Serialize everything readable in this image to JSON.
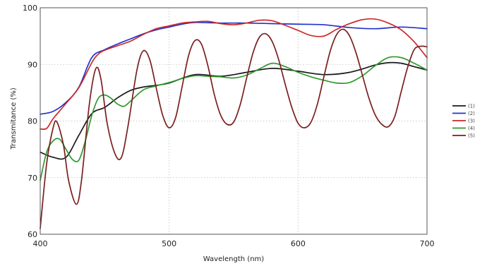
{
  "chart_data": {
    "type": "line",
    "title": "",
    "xlabel": "Wavelength (nm)",
    "ylabel": "Transmitance (%)",
    "xlim": [
      400,
      700
    ],
    "ylim": [
      60,
      100
    ],
    "xticks": [
      400,
      500,
      600,
      700
    ],
    "yticks": [
      60,
      70,
      80,
      90,
      100
    ],
    "grid": true,
    "legend_position": "right",
    "series": [
      {
        "name": "(1)",
        "color": "#1a1a1a",
        "x": [
          400,
          410,
          420,
          430,
          440,
          450,
          460,
          470,
          480,
          490,
          500,
          520,
          540,
          560,
          580,
          600,
          620,
          640,
          660,
          670,
          680,
          690,
          700
        ],
        "y": [
          74.5,
          73.6,
          73.6,
          77.5,
          81.3,
          82.4,
          84.1,
          85.4,
          86.0,
          86.3,
          86.7,
          88.2,
          87.9,
          88.6,
          89.3,
          88.8,
          88.2,
          88.6,
          89.9,
          90.3,
          90.2,
          89.6,
          89.0
        ]
      },
      {
        "name": "(2)",
        "color": "#2233cc",
        "x": [
          400,
          410,
          420,
          430,
          440,
          450,
          460,
          470,
          480,
          490,
          500,
          510,
          520,
          540,
          560,
          580,
          600,
          620,
          640,
          660,
          680,
          700
        ],
        "y": [
          81.2,
          81.7,
          83.3,
          86.0,
          91.2,
          92.6,
          93.6,
          94.5,
          95.4,
          96.1,
          96.6,
          97.1,
          97.4,
          97.3,
          97.3,
          97.2,
          97.1,
          97.0,
          96.5,
          96.3,
          96.6,
          96.3
        ]
      },
      {
        "name": "(3)",
        "color": "#cc2a2a",
        "x": [
          400,
          405,
          410,
          420,
          430,
          440,
          445,
          450,
          460,
          470,
          480,
          490,
          500,
          510,
          520,
          530,
          540,
          550,
          560,
          570,
          580,
          590,
          600,
          610,
          620,
          630,
          640,
          650,
          660,
          670,
          680,
          690,
          700
        ],
        "y": [
          78.6,
          78.7,
          80.4,
          83.1,
          85.9,
          90.3,
          91.8,
          92.5,
          93.3,
          94.1,
          95.3,
          96.3,
          96.8,
          97.3,
          97.5,
          97.6,
          97.2,
          97.0,
          97.3,
          97.8,
          97.7,
          96.9,
          96.0,
          95.1,
          95.0,
          96.2,
          97.2,
          97.9,
          98.0,
          97.3,
          96.1,
          94.0,
          91.2
        ]
      },
      {
        "name": "(4)",
        "color": "#2e9a2e",
        "x": [
          400,
          405,
          410,
          415,
          420,
          425,
          430,
          435,
          440,
          445,
          450,
          455,
          460,
          465,
          470,
          480,
          490,
          500,
          510,
          520,
          530,
          540,
          550,
          560,
          570,
          580,
          590,
          600,
          610,
          620,
          630,
          640,
          650,
          660,
          670,
          680,
          690,
          700
        ],
        "y": [
          69.5,
          74.5,
          76.5,
          76.8,
          75.0,
          73.2,
          73.1,
          76.5,
          81.0,
          84.0,
          84.6,
          84.0,
          83.0,
          82.6,
          83.5,
          85.5,
          86.2,
          86.8,
          87.5,
          88.0,
          87.9,
          87.8,
          87.6,
          88.1,
          89.2,
          90.2,
          89.6,
          88.6,
          87.8,
          87.2,
          86.7,
          86.8,
          88.0,
          89.8,
          91.2,
          91.2,
          90.2,
          89.0
        ]
      },
      {
        "name": "(5)",
        "color": "#7a1f1f",
        "x": [
          400,
          405,
          410,
          413,
          418,
          422,
          428,
          432,
          438,
          443,
          447,
          452,
          458,
          463,
          468,
          475,
          480,
          485,
          490,
          495,
          500,
          505,
          510,
          515,
          520,
          525,
          530,
          535,
          540,
          545,
          550,
          555,
          560,
          565,
          570,
          575,
          580,
          585,
          590,
          595,
          600,
          605,
          610,
          615,
          620,
          625,
          630,
          635,
          640,
          645,
          650,
          655,
          660,
          665,
          670,
          675,
          680,
          685,
          690,
          695,
          700
        ],
        "y": [
          61.0,
          72.5,
          78.8,
          79.8,
          75.8,
          69.5,
          65.3,
          69.5,
          82.8,
          89.2,
          87.5,
          79.5,
          74.2,
          73.6,
          79.0,
          89.0,
          92.4,
          90.8,
          85.8,
          81.0,
          78.8,
          80.6,
          86.0,
          91.5,
          94.2,
          93.6,
          89.8,
          84.7,
          81.0,
          79.4,
          79.8,
          82.8,
          87.5,
          92.0,
          94.8,
          95.4,
          94.0,
          90.8,
          86.5,
          82.5,
          79.6,
          78.8,
          79.8,
          83.0,
          87.8,
          92.4,
          95.3,
          96.2,
          95.0,
          92.0,
          88.0,
          84.0,
          81.0,
          79.4,
          79.0,
          80.8,
          85.2,
          89.5,
          92.6,
          93.2,
          93.1
        ]
      }
    ]
  }
}
